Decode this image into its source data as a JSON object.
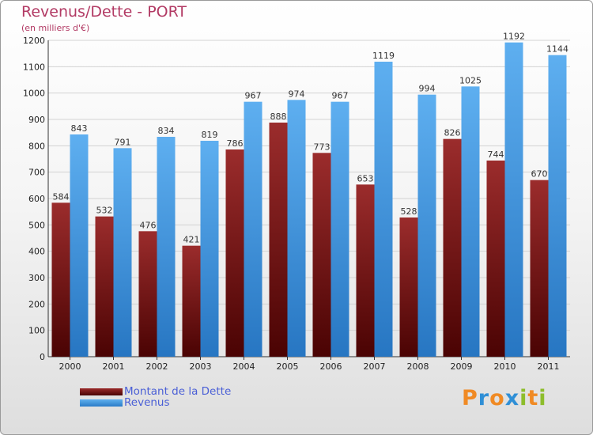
{
  "title": "Revenus/Dette - PORT",
  "subtitle": "(en milliers d'€)",
  "logo": {
    "letters": [
      "P",
      "r",
      "o",
      "x",
      "i",
      "t",
      "i"
    ],
    "colors": [
      "#f08a24",
      "#2f8fd6",
      "#f08a24",
      "#2f8fd6",
      "#8dbd2c",
      "#f08a24",
      "#8dbd2c"
    ]
  },
  "colors": {
    "dette": "#7a1a1a",
    "revenus": "#3a8fdc",
    "title": "#b23a64"
  },
  "chart_data": {
    "type": "bar",
    "title": "Revenus/Dette - PORT",
    "subtitle": "(en milliers d'€)",
    "categories": [
      "2000",
      "2001",
      "2002",
      "2003",
      "2004",
      "2005",
      "2006",
      "2007",
      "2008",
      "2009",
      "2010",
      "2011"
    ],
    "series": [
      {
        "name": "Montant de la Dette",
        "values": [
          584,
          532,
          476,
          421,
          786,
          888,
          773,
          653,
          528,
          826,
          744,
          670
        ]
      },
      {
        "name": "Revenus",
        "values": [
          843,
          791,
          834,
          819,
          967,
          974,
          967,
          1119,
          994,
          1025,
          1192,
          1144
        ]
      }
    ],
    "ylim": [
      0,
      1200
    ],
    "yticks": [
      0,
      100,
      200,
      300,
      400,
      500,
      600,
      700,
      800,
      900,
      1000,
      1100,
      1200
    ],
    "grid": true,
    "legend": "bottom-left"
  }
}
